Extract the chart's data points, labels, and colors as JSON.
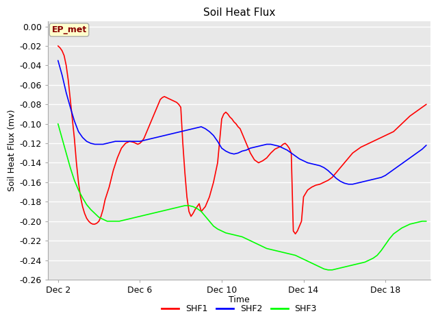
{
  "title": "Soil Heat Flux",
  "xlabel": "Time",
  "ylabel": "Soil Heat Flux (mv)",
  "ylim": [
    -0.26,
    0.005
  ],
  "yticks": [
    0.0,
    -0.02,
    -0.04,
    -0.06,
    -0.08,
    -0.1,
    -0.12,
    -0.14,
    -0.16,
    -0.18,
    -0.2,
    -0.22,
    -0.24,
    -0.26
  ],
  "xtick_labels": [
    "Dec 2",
    "Dec 6",
    "Dec 10",
    "Dec 14",
    "Dec 18"
  ],
  "xtick_positions": [
    2,
    6,
    10,
    14,
    18
  ],
  "xlim": [
    1.5,
    20.2
  ],
  "colors": {
    "SHF1": "#ff0000",
    "SHF2": "#0000ff",
    "SHF3": "#00ff00"
  },
  "fig_bg": "#ffffff",
  "plot_bg": "#e8e8e8",
  "grid_color": "#ffffff",
  "annotation_text": "EP_met",
  "annotation_bg": "#ffffcc",
  "annotation_border": "#aaaaaa",
  "title_fontsize": 11,
  "axis_label_fontsize": 9,
  "tick_fontsize": 9,
  "legend_fontsize": 9,
  "shf1_x": [
    2.0,
    2.1,
    2.2,
    2.3,
    2.4,
    2.5,
    2.6,
    2.7,
    2.8,
    2.9,
    3.0,
    3.1,
    3.2,
    3.3,
    3.4,
    3.5,
    3.6,
    3.7,
    3.8,
    3.9,
    4.0,
    4.1,
    4.2,
    4.3,
    4.5,
    4.7,
    4.9,
    5.1,
    5.3,
    5.5,
    5.7,
    5.9,
    6.0,
    6.1,
    6.2,
    6.3,
    6.4,
    6.5,
    6.6,
    6.7,
    6.8,
    6.9,
    7.0,
    7.1,
    7.2,
    7.3,
    7.4,
    7.5,
    7.6,
    7.7,
    7.8,
    7.9,
    8.0,
    8.1,
    8.2,
    8.3,
    8.4,
    8.5,
    8.6,
    8.7,
    8.8,
    8.9,
    9.0,
    9.2,
    9.4,
    9.6,
    9.8,
    10.0,
    10.1,
    10.2,
    10.3,
    10.4,
    10.5,
    10.6,
    10.7,
    10.8,
    10.9,
    11.0,
    11.2,
    11.4,
    11.6,
    11.8,
    12.0,
    12.2,
    12.4,
    12.5,
    12.6,
    12.7,
    12.8,
    12.9,
    13.0,
    13.1,
    13.2,
    13.3,
    13.4,
    13.5,
    13.6,
    13.7,
    13.8,
    13.9,
    14.0,
    14.2,
    14.4,
    14.6,
    14.8,
    15.0,
    15.2,
    15.4,
    15.6,
    15.8,
    16.0,
    16.2,
    16.4,
    16.6,
    16.8,
    17.0,
    17.2,
    17.4,
    17.6,
    17.8,
    18.0,
    18.2,
    18.4,
    18.6,
    18.8,
    19.0,
    19.2,
    19.4,
    19.6,
    19.8,
    20.0
  ],
  "shf1_y": [
    -0.02,
    -0.022,
    -0.025,
    -0.03,
    -0.04,
    -0.055,
    -0.075,
    -0.095,
    -0.115,
    -0.14,
    -0.16,
    -0.175,
    -0.185,
    -0.192,
    -0.197,
    -0.2,
    -0.202,
    -0.203,
    -0.203,
    -0.202,
    -0.2,
    -0.195,
    -0.188,
    -0.178,
    -0.165,
    -0.148,
    -0.135,
    -0.125,
    -0.12,
    -0.118,
    -0.119,
    -0.121,
    -0.12,
    -0.118,
    -0.115,
    -0.11,
    -0.105,
    -0.1,
    -0.095,
    -0.09,
    -0.085,
    -0.08,
    -0.075,
    -0.073,
    -0.072,
    -0.073,
    -0.074,
    -0.075,
    -0.076,
    -0.077,
    -0.078,
    -0.08,
    -0.083,
    -0.12,
    -0.15,
    -0.175,
    -0.19,
    -0.195,
    -0.192,
    -0.188,
    -0.185,
    -0.182,
    -0.19,
    -0.185,
    -0.175,
    -0.16,
    -0.14,
    -0.095,
    -0.09,
    -0.088,
    -0.09,
    -0.093,
    -0.095,
    -0.098,
    -0.1,
    -0.103,
    -0.105,
    -0.11,
    -0.12,
    -0.13,
    -0.137,
    -0.14,
    -0.138,
    -0.135,
    -0.13,
    -0.128,
    -0.126,
    -0.125,
    -0.124,
    -0.123,
    -0.121,
    -0.12,
    -0.122,
    -0.125,
    -0.13,
    -0.21,
    -0.213,
    -0.21,
    -0.205,
    -0.2,
    -0.175,
    -0.168,
    -0.165,
    -0.163,
    -0.162,
    -0.16,
    -0.158,
    -0.155,
    -0.15,
    -0.145,
    -0.14,
    -0.135,
    -0.13,
    -0.127,
    -0.124,
    -0.122,
    -0.12,
    -0.118,
    -0.116,
    -0.114,
    -0.112,
    -0.11,
    -0.108,
    -0.104,
    -0.1,
    -0.096,
    -0.092,
    -0.089,
    -0.086,
    -0.083,
    -0.08
  ],
  "shf2_x": [
    2.0,
    2.2,
    2.4,
    2.6,
    2.8,
    3.0,
    3.2,
    3.4,
    3.6,
    3.8,
    4.0,
    4.2,
    4.4,
    4.6,
    4.8,
    5.0,
    5.2,
    5.4,
    5.6,
    5.8,
    6.0,
    6.2,
    6.4,
    6.6,
    6.8,
    7.0,
    7.2,
    7.4,
    7.6,
    7.8,
    8.0,
    8.2,
    8.4,
    8.6,
    8.8,
    9.0,
    9.2,
    9.4,
    9.6,
    9.8,
    10.0,
    10.2,
    10.4,
    10.6,
    10.8,
    11.0,
    11.2,
    11.4,
    11.6,
    11.8,
    12.0,
    12.2,
    12.4,
    12.6,
    12.8,
    13.0,
    13.2,
    13.4,
    13.6,
    13.8,
    14.0,
    14.2,
    14.4,
    14.6,
    14.8,
    15.0,
    15.2,
    15.4,
    15.6,
    15.8,
    16.0,
    16.2,
    16.4,
    16.6,
    16.8,
    17.0,
    17.2,
    17.4,
    17.6,
    17.8,
    18.0,
    18.2,
    18.4,
    18.6,
    18.8,
    19.0,
    19.2,
    19.4,
    19.6,
    19.8,
    20.0
  ],
  "shf2_y": [
    -0.035,
    -0.05,
    -0.068,
    -0.083,
    -0.097,
    -0.108,
    -0.114,
    -0.118,
    -0.12,
    -0.121,
    -0.121,
    -0.121,
    -0.12,
    -0.119,
    -0.118,
    -0.118,
    -0.118,
    -0.118,
    -0.118,
    -0.118,
    -0.118,
    -0.117,
    -0.116,
    -0.115,
    -0.114,
    -0.113,
    -0.112,
    -0.111,
    -0.11,
    -0.109,
    -0.108,
    -0.107,
    -0.106,
    -0.105,
    -0.104,
    -0.103,
    -0.105,
    -0.108,
    -0.112,
    -0.118,
    -0.125,
    -0.128,
    -0.13,
    -0.131,
    -0.13,
    -0.128,
    -0.127,
    -0.125,
    -0.124,
    -0.123,
    -0.122,
    -0.121,
    -0.121,
    -0.122,
    -0.123,
    -0.125,
    -0.127,
    -0.13,
    -0.133,
    -0.136,
    -0.138,
    -0.14,
    -0.141,
    -0.142,
    -0.143,
    -0.145,
    -0.148,
    -0.152,
    -0.156,
    -0.159,
    -0.161,
    -0.162,
    -0.162,
    -0.161,
    -0.16,
    -0.159,
    -0.158,
    -0.157,
    -0.156,
    -0.155,
    -0.153,
    -0.15,
    -0.147,
    -0.144,
    -0.141,
    -0.138,
    -0.135,
    -0.132,
    -0.129,
    -0.126,
    -0.122
  ],
  "shf3_x": [
    2.0,
    2.2,
    2.4,
    2.6,
    2.8,
    3.0,
    3.2,
    3.4,
    3.6,
    3.8,
    4.0,
    4.2,
    4.4,
    4.6,
    4.8,
    5.0,
    5.2,
    5.4,
    5.6,
    5.8,
    6.0,
    6.2,
    6.4,
    6.6,
    6.8,
    7.0,
    7.2,
    7.4,
    7.6,
    7.8,
    8.0,
    8.2,
    8.4,
    8.6,
    8.8,
    9.0,
    9.2,
    9.4,
    9.6,
    9.8,
    10.0,
    10.2,
    10.4,
    10.6,
    10.8,
    11.0,
    11.2,
    11.4,
    11.6,
    11.8,
    12.0,
    12.2,
    12.4,
    12.6,
    12.8,
    13.0,
    13.2,
    13.4,
    13.6,
    13.8,
    14.0,
    14.2,
    14.4,
    14.6,
    14.8,
    15.0,
    15.2,
    15.4,
    15.6,
    15.8,
    16.0,
    16.2,
    16.4,
    16.6,
    16.8,
    17.0,
    17.2,
    17.4,
    17.6,
    17.8,
    18.0,
    18.2,
    18.4,
    18.6,
    18.8,
    19.0,
    19.2,
    19.4,
    19.6,
    19.8,
    20.0
  ],
  "shf3_y": [
    -0.1,
    -0.115,
    -0.13,
    -0.145,
    -0.158,
    -0.168,
    -0.176,
    -0.183,
    -0.188,
    -0.192,
    -0.196,
    -0.198,
    -0.2,
    -0.2,
    -0.2,
    -0.2,
    -0.199,
    -0.198,
    -0.197,
    -0.196,
    -0.195,
    -0.194,
    -0.193,
    -0.192,
    -0.191,
    -0.19,
    -0.189,
    -0.188,
    -0.187,
    -0.186,
    -0.185,
    -0.184,
    -0.184,
    -0.185,
    -0.187,
    -0.19,
    -0.195,
    -0.2,
    -0.205,
    -0.208,
    -0.21,
    -0.212,
    -0.213,
    -0.214,
    -0.215,
    -0.216,
    -0.218,
    -0.22,
    -0.222,
    -0.224,
    -0.226,
    -0.228,
    -0.229,
    -0.23,
    -0.231,
    -0.232,
    -0.233,
    -0.234,
    -0.235,
    -0.237,
    -0.239,
    -0.241,
    -0.243,
    -0.245,
    -0.247,
    -0.249,
    -0.25,
    -0.25,
    -0.249,
    -0.248,
    -0.247,
    -0.246,
    -0.245,
    -0.244,
    -0.243,
    -0.242,
    -0.24,
    -0.238,
    -0.235,
    -0.23,
    -0.224,
    -0.218,
    -0.213,
    -0.21,
    -0.207,
    -0.205,
    -0.203,
    -0.202,
    -0.201,
    -0.2,
    -0.2
  ]
}
